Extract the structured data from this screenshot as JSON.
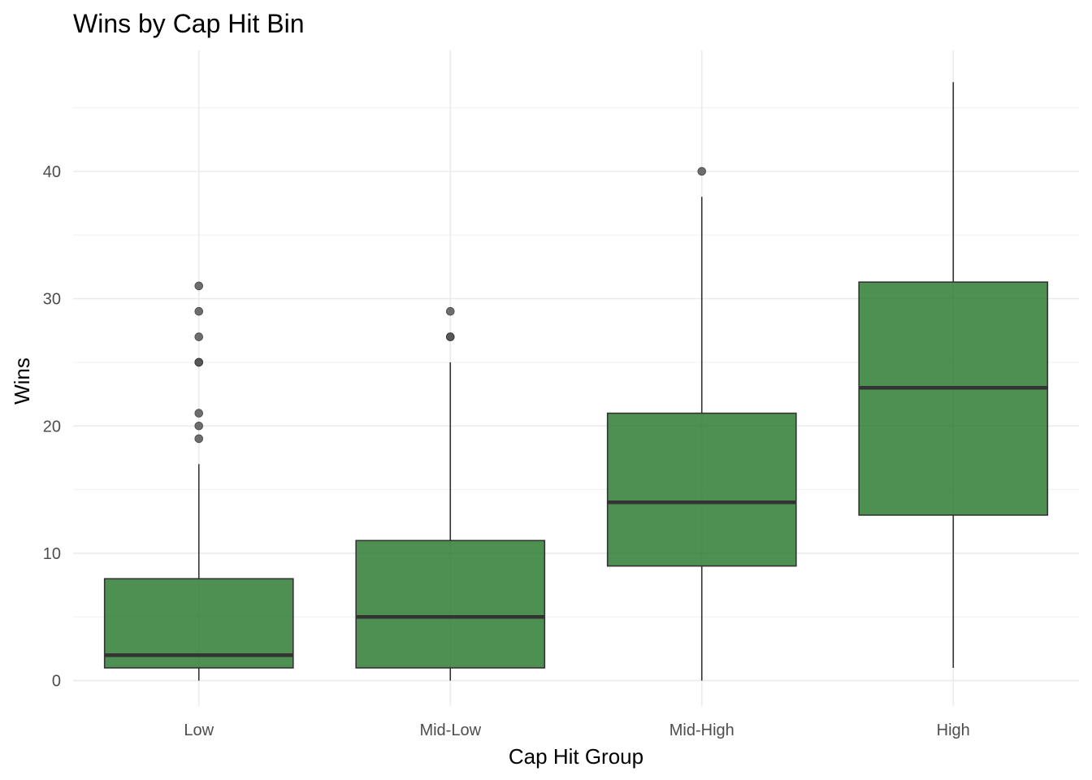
{
  "chart_data": {
    "type": "boxplot",
    "title": "Wins by Cap Hit Bin",
    "xlabel": "Cap Hit Group",
    "ylabel": "Wins",
    "ylim": [
      -2,
      49.5
    ],
    "y_ticks": [
      0,
      10,
      20,
      30,
      40
    ],
    "y_tick_labels": [
      "0",
      "10",
      "20",
      "30",
      "40"
    ],
    "grid": true,
    "legend": "none",
    "fill_color": "#2e7d32",
    "fill_opacity": 0.85,
    "line_color": "#333333",
    "categories": [
      "Low",
      "Mid-Low",
      "Mid-High",
      "High"
    ],
    "boxes": [
      {
        "category": "Low",
        "whisker_low": 0,
        "q1": 1,
        "median": 2,
        "q3": 8,
        "whisker_high": 17,
        "outliers": [
          19,
          20,
          21,
          25,
          25,
          27,
          29,
          31
        ]
      },
      {
        "category": "Mid-Low",
        "whisker_low": 0,
        "q1": 1,
        "median": 5,
        "q3": 11,
        "whisker_high": 25,
        "outliers": [
          27,
          27,
          29
        ]
      },
      {
        "category": "Mid-High",
        "whisker_low": 0,
        "q1": 9,
        "median": 14,
        "q3": 21,
        "whisker_high": 38,
        "outliers": [
          40
        ]
      },
      {
        "category": "High",
        "whisker_low": 1,
        "q1": 13,
        "median": 23,
        "q3": 31.3,
        "whisker_high": 47,
        "outliers": []
      }
    ]
  }
}
